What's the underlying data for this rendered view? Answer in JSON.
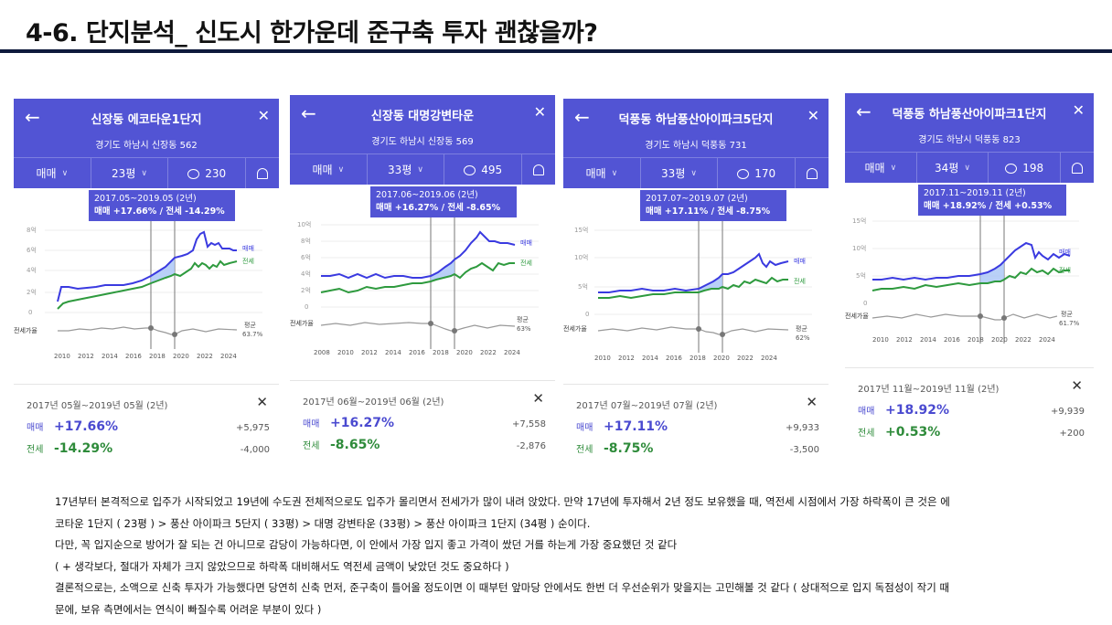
{
  "slide_title": "4-6. 단지분석_ 신도시 한가운데 준구축 투자 괜찮을까?",
  "icons": {
    "back": "back-arrow-icon",
    "close": "close-icon",
    "comment": "comment-bubble-icon",
    "bell": "bell-icon"
  },
  "colors": {
    "header": "#5254d4",
    "trade": "#4a4ad0",
    "lease": "#2e8b3a",
    "rule": "#0e1a3c"
  },
  "cards": [
    {
      "title": "신장동 에코타운1단지",
      "address": "경기도 하남시 신장동 562",
      "tabs": {
        "type": "매매",
        "size": "23평",
        "comments": "230"
      },
      "tooltip": {
        "period": "2017.05~2019.05 (2년)",
        "change": "매매 +17.66%  /  전세 -14.29%"
      },
      "y_ticks": [
        "8억",
        "6억",
        "4억",
        "2억",
        "0"
      ],
      "x_ticks": [
        "2010",
        "2012",
        "2014",
        "2016",
        "2018",
        "2020",
        "2022",
        "2024"
      ],
      "labels": {
        "trade": "매매",
        "lease": "전세",
        "ratio": "전세가율",
        "avg": "평균",
        "avg_value": "63.7%"
      },
      "summary": {
        "period": "2017년 05월~2019년 05월 (2년)",
        "trade_label": "매매",
        "trade_pct": "+17.66%",
        "trade_amt": "+5,975",
        "lease_label": "전세",
        "lease_pct": "-14.29%",
        "lease_amt": "-4,000"
      }
    },
    {
      "title": "신장동 대명강변타운",
      "address": "경기도 하남시 신장동 569",
      "tabs": {
        "type": "매매",
        "size": "33평",
        "comments": "495"
      },
      "tooltip": {
        "period": "2017.06~2019.06 (2년)",
        "change": "매매 +16.27%  /  전세 -8.65%"
      },
      "y_ticks": [
        "10억",
        "8억",
        "6억",
        "4억",
        "2억",
        "0"
      ],
      "x_ticks": [
        "2008",
        "2010",
        "2012",
        "2014",
        "2016",
        "2018",
        "2020",
        "2022",
        "2024"
      ],
      "labels": {
        "trade": "매매",
        "lease": "전세",
        "ratio": "전세가율",
        "avg": "평균",
        "avg_value": "63%"
      },
      "summary": {
        "period": "2017년 06월~2019년 06월 (2년)",
        "trade_label": "매매",
        "trade_pct": "+16.27%",
        "trade_amt": "+7,558",
        "lease_label": "전세",
        "lease_pct": "-8.65%",
        "lease_amt": "-2,876"
      }
    },
    {
      "title": "덕풍동 하남풍산아이파크5단지",
      "address": "경기도 하남시 덕풍동 731",
      "tabs": {
        "type": "매매",
        "size": "33평",
        "comments": "170"
      },
      "tooltip": {
        "period": "2017.07~2019.07 (2년)",
        "change": "매매 +17.11%  /  전세 -8.75%"
      },
      "y_ticks": [
        "15억",
        "10억",
        "5억",
        "0"
      ],
      "x_ticks": [
        "2010",
        "2012",
        "2014",
        "2016",
        "2018",
        "2020",
        "2022",
        "2024"
      ],
      "labels": {
        "trade": "매매",
        "lease": "전세",
        "ratio": "전세가율",
        "avg": "평균",
        "avg_value": "62%"
      },
      "summary": {
        "period": "2017년 07월~2019년 07월 (2년)",
        "trade_label": "매매",
        "trade_pct": "+17.11%",
        "trade_amt": "+9,933",
        "lease_label": "전세",
        "lease_pct": "-8.75%",
        "lease_amt": "-3,500"
      }
    },
    {
      "title": "덕풍동 하남풍산아이파크1단지",
      "address": "경기도 하남시 덕풍동 823",
      "tabs": {
        "type": "매매",
        "size": "34평",
        "comments": "198"
      },
      "tooltip": {
        "period": "2017.11~2019.11 (2년)",
        "change": "매매 +18.92%  /  전세 +0.53%"
      },
      "y_ticks": [
        "15억",
        "10억",
        "5억",
        "0"
      ],
      "x_ticks": [
        "2010",
        "2012",
        "2014",
        "2016",
        "2018",
        "2020",
        "2022",
        "2024"
      ],
      "labels": {
        "trade": "매매",
        "lease": "전세",
        "ratio": "전세가율",
        "avg": "평균",
        "avg_value": "61.7%"
      },
      "summary": {
        "period": "2017년 11월~2019년 11월 (2년)",
        "trade_label": "매매",
        "trade_pct": "+18.92%",
        "trade_amt": "+9,939",
        "lease_label": "전세",
        "lease_pct": "+0.53%",
        "lease_amt": "+200"
      }
    }
  ],
  "notes": [
    " 17년부터 본격적으로 입주가 시작되었고 19년에 수도권 전체적으로도 입주가 몰리면서 전세가가 많이 내려 앉았다. 만약 17년에 투자해서 2년 정도 보유했을 때, 역전세 시점에서 가장 하락폭이 큰 것은 에",
    "코타운 1단지 ( 23평 ) > 풍산 아이파크 5단지 ( 33평) > 대명 강변타운 (33평) > 풍산 아이파크 1단지 (34평 ) 순이다.",
    "다만, 꼭 입지순으로 방어가 잘 되는 건 아니므로 감당이 가능하다면, 이 안에서 가장 입지 좋고 가격이 쌌던 거를 하는게 가장 중요했던 것 같다",
    " ( + 생각보다, 절대가 자체가 크지 않았으므로 하락폭 대비해서도 역전세 금액이 낮았던  것도 중요하다 )",
    "결론적으로는, 소액으로 신축 투자가 가능했다면 당연히 신축 먼저, 준구축이 틀어올 정도이면 이 때부턴 앞마당 안에서도 한번 더 우선순위가 맞을지는 고민해볼 것 같다 ( 상대적으로 입지 독점성이 작기  때",
    "문에, 보유 측면에서는 연식이 빠질수록 어려운 부분이 있다 )"
  ]
}
